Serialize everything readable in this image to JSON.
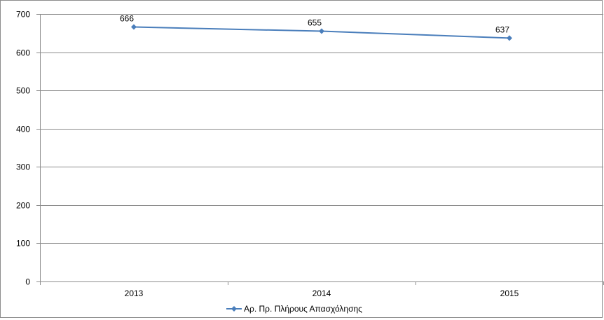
{
  "chart_data": {
    "type": "line",
    "categories": [
      "2013",
      "2014",
      "2015"
    ],
    "series": [
      {
        "name": "Αρ. Πρ. Πλήρους Απασχόλησης",
        "values": [
          666,
          655,
          637
        ],
        "color": "#4a7ebb"
      }
    ],
    "ylim": [
      0,
      700
    ],
    "yticks": [
      0,
      100,
      200,
      300,
      400,
      500,
      600,
      700
    ],
    "grid": true,
    "legend_position": "bottom",
    "data_labels": true
  }
}
